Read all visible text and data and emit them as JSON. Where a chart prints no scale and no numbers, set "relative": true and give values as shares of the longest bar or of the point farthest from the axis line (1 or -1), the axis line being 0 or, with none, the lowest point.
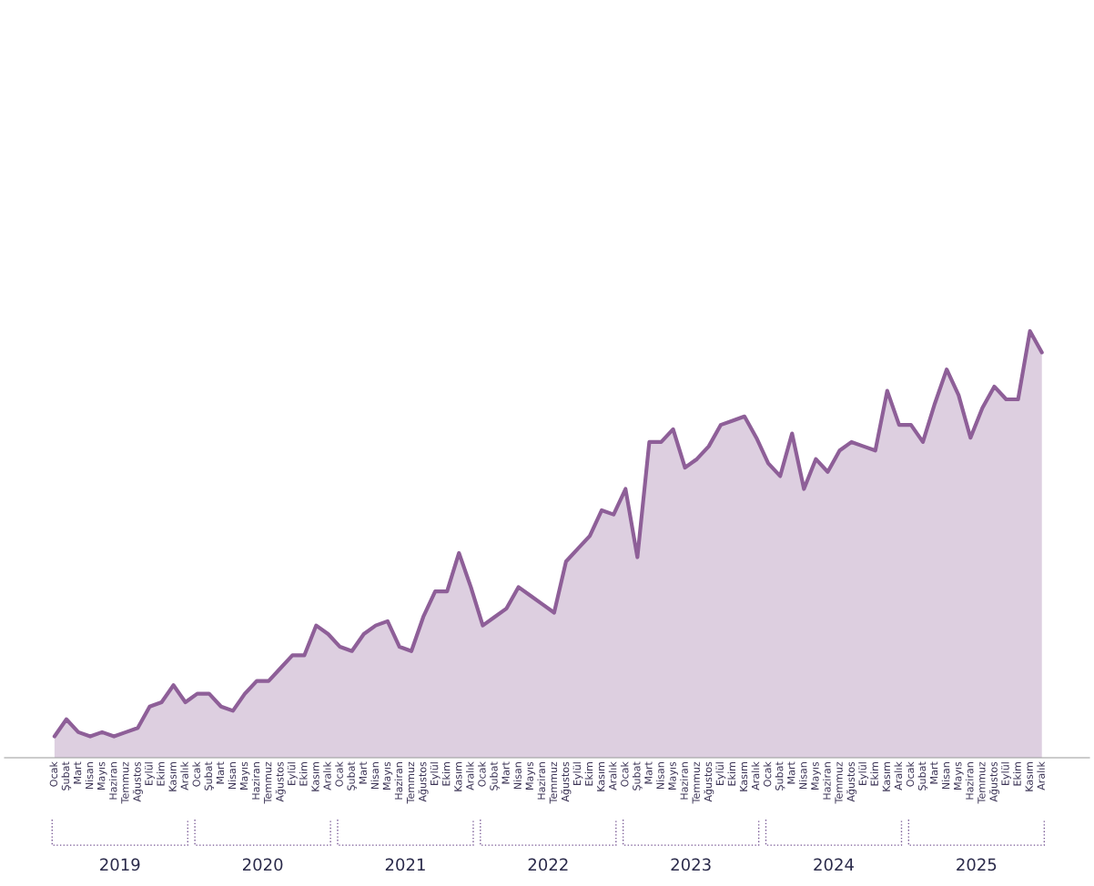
{
  "chart_data": {
    "type": "area",
    "relative": true,
    "tick_labels": "x",
    "grid": false,
    "legend": false,
    "categories": [
      "Ocak",
      "Şubat",
      "Mart",
      "Nisan",
      "Mayıs",
      "Haziran",
      "Temmuz",
      "Ağustos",
      "Eylül",
      "Ekim",
      "Kasım",
      "Aralık",
      "Ocak",
      "Şubat",
      "Mart",
      "Nisan",
      "Mayıs",
      "Haziran",
      "Temmuz",
      "Ağustos",
      "Eylül",
      "Ekim",
      "Kasım",
      "Aralık",
      "Ocak",
      "Şubat",
      "Mart",
      "Nisan",
      "Mayıs",
      "Haziran",
      "Temmuz",
      "Ağustos",
      "Eylül",
      "Ekim",
      "Kasım",
      "Aralık",
      "Ocak",
      "Şubat",
      "Mart",
      "Nisan",
      "Mayıs",
      "Haziran",
      "Temmuz",
      "Ağustos",
      "Eylül",
      "Ekim",
      "Kasım",
      "Aralık",
      "Ocak",
      "Şubat",
      "Mart",
      "Nisan",
      "Mayıs",
      "Haziran",
      "Temmuz",
      "Ağustos",
      "Eylül",
      "Ekim",
      "Kasım",
      "Aralık",
      "Ocak",
      "Şubat",
      "Mart",
      "Nisan",
      "Mayıs",
      "Haziran",
      "Temmuz",
      "Ağustos",
      "Eylül",
      "Ekim",
      "Kasım",
      "Aralık",
      "Ocak",
      "Şubat",
      "Mart",
      "Nisan",
      "Mayıs",
      "Haziran",
      "Temmuz",
      "Ağustos",
      "Eylül",
      "Ekim",
      "Kasım",
      "Aralık"
    ],
    "series": [
      {
        "color": "#8e5f98",
        "values": [
          0.05,
          0.09,
          0.06,
          0.05,
          0.06,
          0.05,
          0.06,
          0.07,
          0.12,
          0.13,
          0.17,
          0.13,
          0.15,
          0.15,
          0.12,
          0.11,
          0.15,
          0.18,
          0.18,
          0.21,
          0.24,
          0.24,
          0.31,
          0.29,
          0.26,
          0.25,
          0.29,
          0.31,
          0.32,
          0.26,
          0.25,
          0.33,
          0.39,
          0.39,
          0.48,
          0.4,
          0.31,
          0.33,
          0.35,
          0.4,
          0.38,
          0.36,
          0.34,
          0.46,
          0.49,
          0.52,
          0.58,
          0.57,
          0.63,
          0.47,
          0.74,
          0.74,
          0.77,
          0.68,
          0.7,
          0.73,
          0.78,
          0.79,
          0.8,
          0.75,
          0.69,
          0.66,
          0.76,
          0.63,
          0.7,
          0.67,
          0.72,
          0.74,
          0.73,
          0.72,
          0.86,
          0.78,
          0.78,
          0.74,
          0.83,
          0.91,
          0.85,
          0.75,
          0.82,
          0.87,
          0.84,
          0.84,
          1.0,
          0.95
        ]
      }
    ],
    "annotations": [
      "2019",
      "2020",
      "2021",
      "2022",
      "2023",
      "2024",
      "2025"
    ]
  }
}
